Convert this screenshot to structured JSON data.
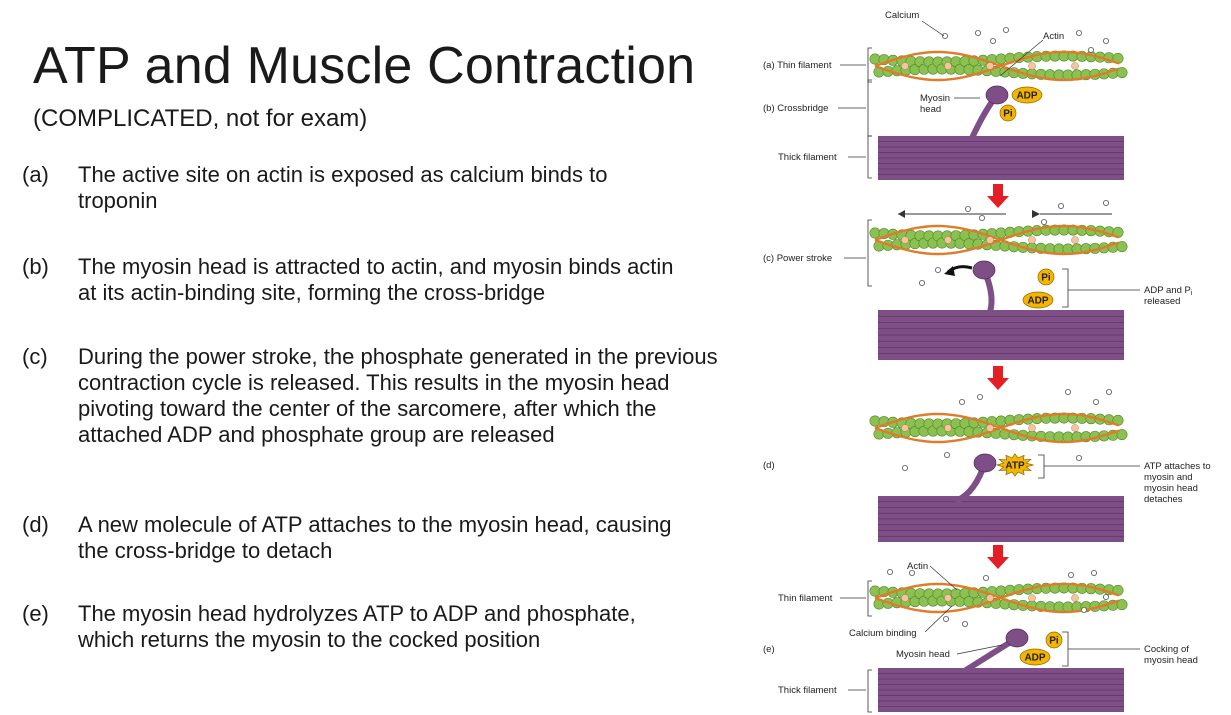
{
  "slide": {
    "title": "ATP and Muscle Contraction",
    "subtitle": "(COMPLICATED, not for exam)",
    "steps": [
      {
        "label": "(a)",
        "text": "The active site on actin is exposed as calcium binds to troponin"
      },
      {
        "label": "(b)",
        "text": "The myosin head is attracted to actin, and myosin binds actin at its actin-binding site, forming the cross-bridge"
      },
      {
        "label": "(c)",
        "text": "During the power stroke, the phosphate generated in the previous contraction cycle is released. This results in the myosin head pivoting toward the center of the sarcomere, after which the attached ADP and phosphate group are released"
      },
      {
        "label": "(d)",
        "text": "A new molecule of ATP attaches to the myosin head, causing the cross-bridge to detach"
      },
      {
        "label": "(e)",
        "text": "The myosin head hydrolyzes ATP to ADP and phosphate, which returns the myosin to the cocked position"
      }
    ]
  },
  "diagram": {
    "labels": {
      "calcium": "Calcium",
      "actin": "Actin",
      "thin_filament_a": "(a) Thin filament",
      "crossbridge_b": "(b) Crossbridge",
      "myosin_head": "Myosin head",
      "thick_filament": "Thick filament",
      "power_stroke_c": "(c) Power stroke",
      "adp_pi_released": "ADP and Pi released",
      "d": "(d)",
      "atp_attaches": "ATP attaches to myosin and myosin head detaches",
      "actin_e": "Actin",
      "thin_filament_e": "Thin filament",
      "calcium_binding": "Calcium binding",
      "e": "(e)",
      "myosin_head_e": "Myosin head",
      "cocking": "Cocking of myosin head",
      "thick_filament_e": "Thick filament"
    },
    "chem": {
      "adp": "ADP",
      "pi": "Pi",
      "atp": "ATP"
    },
    "colors": {
      "actin_green": "#8cc152",
      "actin_dark": "#4e8a2a",
      "tropomyosin": "#e07b2a",
      "myosin": "#7e4f86",
      "myosin_dark": "#4e2a57",
      "adp_fill": "#f5b400",
      "arrow_red": "#e31e24"
    }
  }
}
